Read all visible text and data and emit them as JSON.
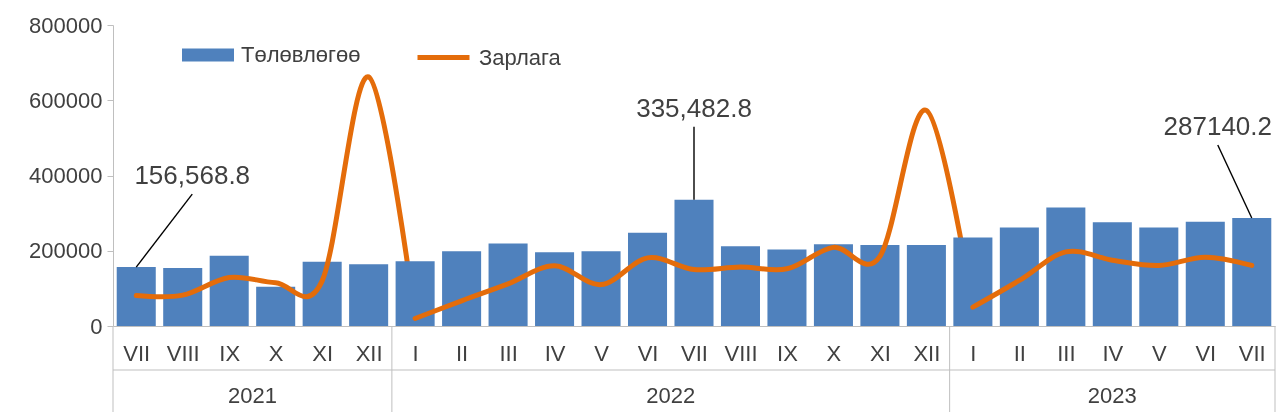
{
  "chart_data": [
    {
      "type": "bar",
      "categories": [
        "VII",
        "VIII",
        "IX",
        "X",
        "XI",
        "XII"
      ],
      "xlabel": "2021",
      "series": [
        {
          "name": "Төлөвлөгөө",
          "color": "#4f81bd",
          "values": [
            156568.8,
            154000,
            187000,
            104000,
            171000,
            164000
          ],
          "value_labels": [
            "156,568.8",
            null,
            null,
            null,
            null,
            null
          ]
        },
        {
          "name": "Зарлага",
          "type": "line",
          "color": "#e46c0a",
          "values": [
            81000,
            82000,
            129000,
            115000,
            120000,
            662000
          ]
        }
      ],
      "ylim": [
        0,
        800000
      ],
      "yticks": [
        0,
        200000,
        400000,
        600000,
        800000
      ],
      "legend": "top"
    },
    {
      "type": "bar",
      "categories": [
        "I",
        "II",
        "III",
        "IV",
        "V",
        "VI",
        "VII",
        "VIII",
        "IX",
        "X",
        "XI",
        "XII"
      ],
      "xlabel": "2022",
      "series": [
        {
          "color": "#4f81bd",
          "values": [
            172000,
            199000,
            219000,
            196000,
            199000,
            248000,
            335482.8,
            212000,
            203000,
            217000,
            215000,
            215000
          ],
          "value_labels": [
            null,
            null,
            null,
            null,
            null,
            null,
            "335,482.8",
            null,
            null,
            null,
            null,
            null
          ]
        },
        {
          "type": "line",
          "color": "#e46c0a",
          "values": [
            20000,
            67000,
            112000,
            160000,
            110000,
            181000,
            150000,
            157000,
            152000,
            209000,
            185000,
            573000
          ]
        }
      ],
      "ylim": [
        0,
        800000
      ],
      "tick_labels": "x"
    },
    {
      "type": "bar",
      "categories": [
        "I",
        "II",
        "III",
        "IV",
        "V",
        "VI",
        "VII"
      ],
      "xlabel": "2023",
      "series": [
        {
          "color": "#4f81bd",
          "values": [
            235000,
            262000,
            315000,
            276000,
            262000,
            277000,
            287140.2
          ],
          "value_labels": [
            null,
            null,
            null,
            null,
            null,
            null,
            "287140.2"
          ]
        },
        {
          "type": "line",
          "color": "#e46c0a",
          "values": [
            50000,
            121000,
            197000,
            175000,
            161000,
            183000,
            161000
          ]
        }
      ],
      "ylim": [
        0,
        800000
      ],
      "tick_labels": "x"
    }
  ]
}
